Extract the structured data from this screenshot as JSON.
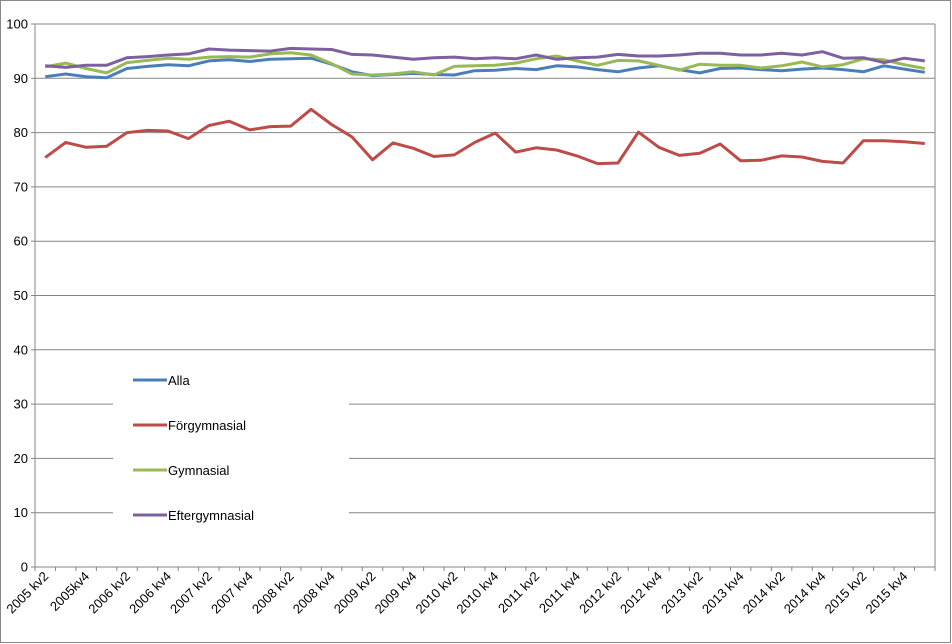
{
  "chart_data": {
    "type": "line",
    "categories": [
      "2005 kv2",
      null,
      "2005kv4",
      null,
      "2006 kv2",
      null,
      "2006 kv4",
      null,
      "2007 kv2",
      null,
      "2007 kv4",
      null,
      "2008 kv2",
      null,
      "2008 kv4",
      null,
      "2009 kv2",
      null,
      "2009 kv4",
      null,
      "2010 kv2",
      null,
      "2010 kv4",
      null,
      "2011 kv2",
      null,
      "2011 kv4",
      null,
      "2012 kv2",
      null,
      "2012 kv4",
      null,
      "2013 kv2",
      null,
      "2013 kv4",
      null,
      "2014 kv2",
      null,
      "2014 kv4",
      null,
      "2015 kv2",
      null,
      "2015 kv4",
      null
    ],
    "series": [
      {
        "name": "Alla",
        "color": "#4a7ebb",
        "values": [
          90.3,
          90.8,
          90.3,
          90.1,
          91.8,
          92.2,
          92.5,
          92.3,
          93.2,
          93.4,
          93.1,
          93.5,
          93.6,
          93.7,
          92.6,
          91.2,
          90.5,
          90.7,
          90.9,
          90.7,
          90.6,
          91.4,
          91.5,
          91.8,
          91.6,
          92.3,
          92.1,
          91.6,
          91.2,
          91.9,
          92.3,
          91.6,
          91.0,
          91.8,
          91.9,
          91.6,
          91.4,
          91.7,
          91.9,
          91.6,
          91.2,
          92.3,
          91.7,
          91.1
        ]
      },
      {
        "name": "Förgymnasial",
        "color": "#be4b48",
        "values": [
          75.4,
          78.2,
          77.3,
          77.5,
          80.0,
          80.4,
          80.3,
          78.9,
          81.3,
          82.1,
          80.5,
          81.1,
          81.2,
          84.3,
          81.5,
          79.2,
          75.0,
          78.1,
          77.1,
          75.6,
          75.9,
          78.2,
          79.9,
          76.4,
          77.2,
          76.8,
          75.7,
          74.3,
          74.4,
          80.1,
          77.3,
          75.8,
          76.2,
          77.9,
          74.8,
          74.9,
          75.7,
          75.5,
          74.7,
          74.4,
          78.5,
          78.5,
          78.3,
          78.0
        ]
      },
      {
        "name": "Gymnasial",
        "color": "#98b954",
        "values": [
          92.1,
          92.8,
          91.8,
          91.0,
          92.9,
          93.3,
          93.7,
          93.5,
          93.9,
          94.0,
          93.9,
          94.5,
          94.7,
          94.3,
          92.7,
          90.8,
          90.6,
          90.8,
          91.2,
          90.6,
          92.2,
          92.3,
          92.4,
          92.8,
          93.6,
          94.1,
          93.2,
          92.4,
          93.3,
          93.2,
          92.4,
          91.5,
          92.6,
          92.4,
          92.4,
          91.9,
          92.3,
          93.0,
          92.1,
          92.5,
          93.6,
          93.4,
          92.5,
          91.8
        ]
      },
      {
        "name": "Eftergymnasial",
        "color": "#7d60a0",
        "values": [
          92.3,
          92.0,
          92.4,
          92.4,
          93.8,
          94.0,
          94.3,
          94.5,
          95.4,
          95.2,
          95.1,
          95.0,
          95.5,
          95.4,
          95.3,
          94.4,
          94.3,
          93.9,
          93.5,
          93.8,
          93.9,
          93.6,
          93.8,
          93.6,
          94.3,
          93.5,
          93.8,
          93.9,
          94.4,
          94.1,
          94.1,
          94.3,
          94.6,
          94.6,
          94.3,
          94.3,
          94.6,
          94.3,
          94.9,
          93.7,
          93.8,
          92.9,
          93.7,
          93.2
        ]
      }
    ],
    "ylim": [
      0,
      100
    ],
    "yticks": [
      0,
      10,
      20,
      30,
      40,
      50,
      60,
      70,
      80,
      90,
      100
    ],
    "grid": true
  }
}
